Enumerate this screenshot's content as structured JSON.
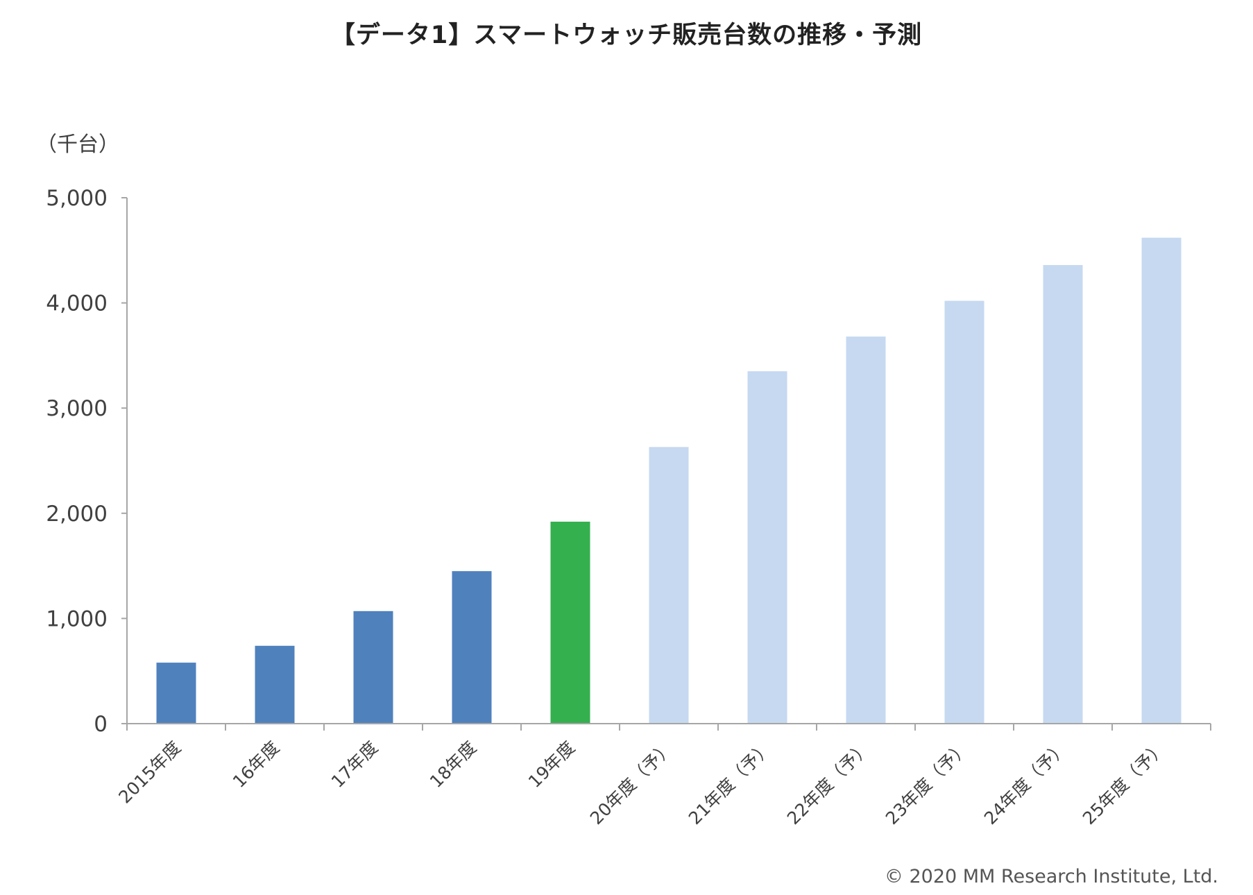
{
  "chart_data": {
    "type": "bar",
    "title": "【データ1】スマートウォッチ販売台数の推移・予測",
    "ylabel": "（千台）",
    "xlabel": "",
    "ylim": [
      0,
      5000
    ],
    "yticks": [
      0,
      1000,
      2000,
      3000,
      4000,
      5000
    ],
    "ytick_labels": [
      "0",
      "1,000",
      "2,000",
      "3,000",
      "4,000",
      "5,000"
    ],
    "grid": false,
    "categories": [
      "2015年度",
      "16年度",
      "17年度",
      "18年度",
      "19年度",
      "20年度（予）",
      "21年度（予）",
      "22年度（予）",
      "23年度（予）",
      "24年度（予）",
      "25年度（予）"
    ],
    "values": [
      580,
      740,
      1070,
      1450,
      1920,
      2630,
      3350,
      3680,
      4020,
      4360,
      4620
    ],
    "bar_kinds": [
      "actual",
      "actual",
      "actual",
      "actual",
      "latest",
      "forecast",
      "forecast",
      "forecast",
      "forecast",
      "forecast",
      "forecast"
    ],
    "colors": {
      "actual": "#4f81bd",
      "latest": "#35b04f",
      "forecast": "#c6d9f1",
      "axis": "#a6a6a6",
      "text": "#404040"
    }
  },
  "footer": {
    "copyright": "© 2020 MM Research Institute, Ltd."
  }
}
